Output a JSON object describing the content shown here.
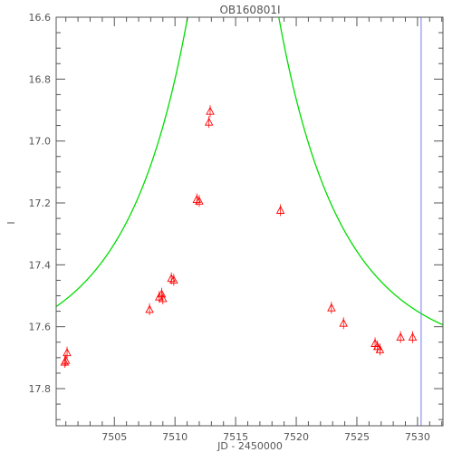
{
  "chart_data": {
    "type": "scatter",
    "title": "OB160801I",
    "xlabel": "JD - 2450000",
    "ylabel": "I",
    "xlim": [
      7500.2,
      7532.1
    ],
    "ylim": [
      17.92,
      16.6
    ],
    "y_inverted": true,
    "grid": false,
    "x_ticks": [
      7505,
      7510,
      7515,
      7520,
      7525,
      7530
    ],
    "x_tick_labels": [
      "7505",
      "7510",
      "7515",
      "7520",
      "7525",
      "7530"
    ],
    "y_ticks": [
      16.6,
      16.8,
      17.0,
      17.2,
      17.4,
      17.6,
      17.8
    ],
    "y_tick_labels": [
      "16.6",
      "16.8",
      "17.0",
      "17.2",
      "17.4",
      "17.6",
      "17.8"
    ],
    "x_minor_step": 1,
    "y_minor_step": 0.05,
    "vertical_line_x": 7530.3,
    "series": [
      {
        "marker": "triangle",
        "color": "#ff0000",
        "points": [
          {
            "x": 7500.9,
            "y": 17.715
          },
          {
            "x": 7501.0,
            "y": 17.71
          },
          {
            "x": 7501.1,
            "y": 17.685
          },
          {
            "x": 7507.9,
            "y": 17.545
          },
          {
            "x": 7508.7,
            "y": 17.505
          },
          {
            "x": 7508.9,
            "y": 17.495
          },
          {
            "x": 7509.0,
            "y": 17.51
          },
          {
            "x": 7509.7,
            "y": 17.445
          },
          {
            "x": 7509.9,
            "y": 17.45
          },
          {
            "x": 7511.8,
            "y": 17.19
          },
          {
            "x": 7512.0,
            "y": 17.195
          },
          {
            "x": 7512.8,
            "y": 16.94
          },
          {
            "x": 7512.9,
            "y": 16.905
          },
          {
            "x": 7518.7,
            "y": 17.225
          },
          {
            "x": 7522.9,
            "y": 17.54
          },
          {
            "x": 7523.9,
            "y": 17.59
          },
          {
            "x": 7526.5,
            "y": 17.655
          },
          {
            "x": 7526.7,
            "y": 17.665
          },
          {
            "x": 7526.9,
            "y": 17.675
          },
          {
            "x": 7528.6,
            "y": 17.635
          },
          {
            "x": 7529.6,
            "y": 17.635
          }
        ]
      }
    ],
    "model_curve": {
      "type": "line",
      "color": "#00dd00",
      "t0": 7514.8,
      "u0": 0.14,
      "tE": 11.6,
      "baseline": 17.72,
      "blend_fraction": 0.92
    }
  }
}
